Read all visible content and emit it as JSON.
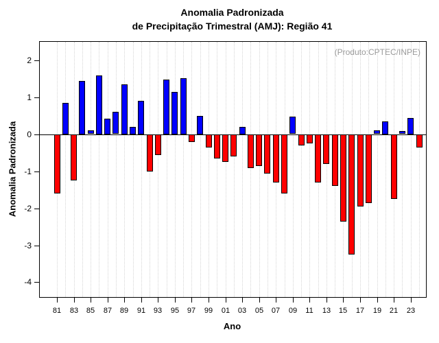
{
  "title": {
    "line1": "Anomalia Padronizada",
    "line2": "de Precipitação Trimestral (AMJ): Região 41"
  },
  "annotation": "(Produto:CPTEC/INPE)",
  "xlabel": "Ano",
  "ylabel": "Anomalia Padronizada",
  "chart_data": {
    "type": "bar",
    "title": "Anomalia Padronizada de Precipitação Trimestral (AMJ): Região 41",
    "xlabel": "Ano",
    "ylabel": "Anomalia Padronizada",
    "categories": [
      "81",
      "82",
      "83",
      "84",
      "85",
      "86",
      "87",
      "88",
      "89",
      "90",
      "91",
      "92",
      "93",
      "94",
      "95",
      "96",
      "97",
      "98",
      "99",
      "00",
      "01",
      "02",
      "03",
      "04",
      "05",
      "06",
      "07",
      "08",
      "09",
      "10",
      "11",
      "12",
      "13",
      "14",
      "15",
      "16",
      "17",
      "18",
      "19",
      "20",
      "21",
      "22",
      "23",
      "24"
    ],
    "values": [
      -1.6,
      0.85,
      -1.25,
      1.45,
      0.1,
      1.6,
      0.42,
      0.6,
      1.35,
      0.2,
      0.9,
      -1.0,
      -0.55,
      1.48,
      1.15,
      1.52,
      -0.2,
      0.5,
      -0.35,
      -0.65,
      -0.75,
      -0.6,
      0.2,
      -0.9,
      -0.85,
      -1.05,
      -1.3,
      -1.6,
      0.47,
      -0.3,
      -0.25,
      -1.3,
      -0.8,
      -1.4,
      -2.35,
      -3.25,
      -1.95,
      -1.85,
      0.1,
      0.35,
      -1.75,
      0.08,
      0.45,
      -0.35
    ],
    "positive_color": "#0000ff",
    "negative_color": "#ff0000",
    "bar_border_color": "#000000",
    "ylim": [
      -4.4,
      2.5
    ],
    "yticks": [
      2,
      1,
      0,
      -1,
      -2,
      -3,
      -4
    ],
    "xtick_every": 2,
    "grid": "vertical-dotted",
    "legend": "none"
  }
}
